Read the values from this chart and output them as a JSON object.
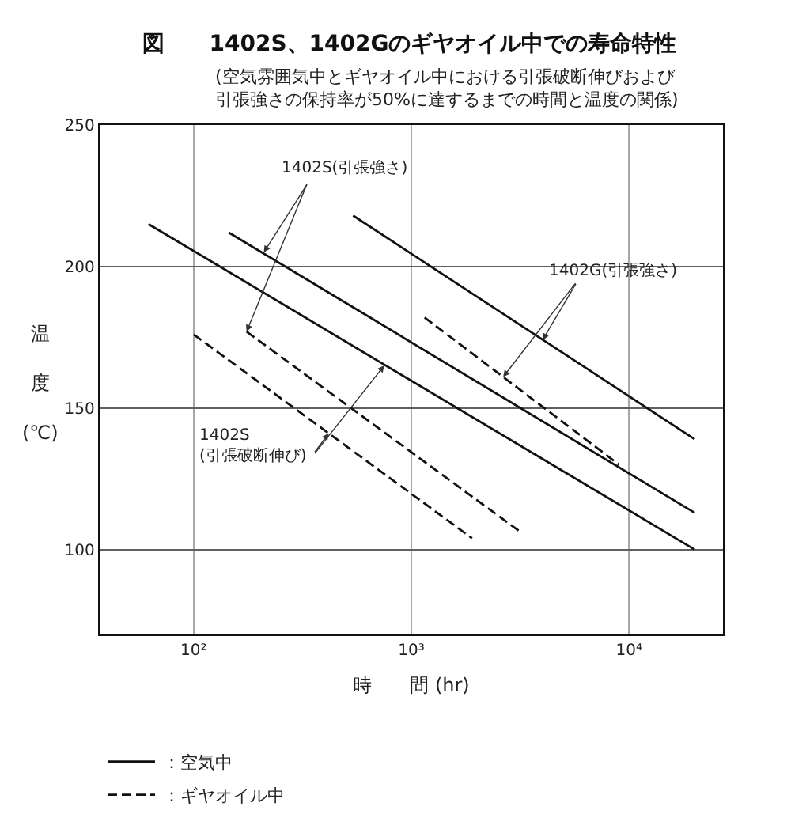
{
  "chart_data": {
    "type": "line",
    "title": "図　　1402S、1402Gのギヤオイル中での寿命特性",
    "subtitle": "(空気雰囲気中とギヤオイル中における引張破断伸びおよび引張強さの保持率が50%に達するまでの時間と温度の関係)",
    "xlabel": "時　　間 (hr)",
    "ylabel": "温度(℃)",
    "log": "x",
    "xlim": [
      37,
      27000
    ],
    "xticks": [
      {
        "value": 100,
        "label": "10²"
      },
      {
        "value": 1000,
        "label": "10³"
      },
      {
        "value": 10000,
        "label": "10⁴"
      }
    ],
    "ylim": [
      70,
      250
    ],
    "yticks": [
      100,
      150,
      200,
      250
    ],
    "grid": true,
    "legend": "bottom left",
    "series": [
      {
        "name": "：空気中",
        "color": "#111111",
        "line_style": "solid",
        "x": [
          145,
          20000
        ],
        "values": [
          212,
          113
        ]
      },
      {
        "name": "：ギヤオイル中",
        "color": "#111111",
        "line_style": "dashed",
        "x": [
          175,
          3200
        ],
        "values": [
          177,
          106
        ]
      },
      {
        "color": "#111111",
        "line_style": "solid",
        "x": [
          62,
          20000
        ],
        "values": [
          215,
          100
        ]
      },
      {
        "color": "#111111",
        "line_style": "dashed",
        "x": [
          100,
          1900
        ],
        "values": [
          176,
          104
        ]
      },
      {
        "color": "#111111",
        "line_style": "solid",
        "x": [
          540,
          20000
        ],
        "values": [
          218,
          139
        ]
      },
      {
        "color": "#111111",
        "line_style": "dashed",
        "x": [
          1150,
          9000
        ],
        "values": [
          182,
          130
        ]
      }
    ],
    "annotations": [
      {
        "text": "1402S(引張強さ)",
        "x": 210,
        "y": 205
      },
      {
        "text": "1402S\n(引張破断伸び)",
        "x": 750,
        "y": 165
      },
      {
        "text": "1402G(引張強さ)",
        "x": 4000,
        "y": 174
      }
    ]
  }
}
